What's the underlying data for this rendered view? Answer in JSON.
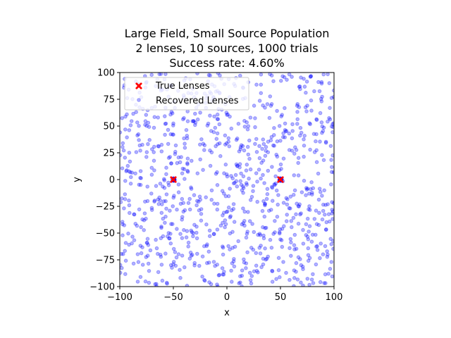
{
  "chart_data": {
    "type": "scatter",
    "title_lines": [
      "Large Field, Small Source Population",
      "2 lenses, 10 sources, 1000 trials",
      "Success rate: 4.60%"
    ],
    "xlabel": "x",
    "ylabel": "y",
    "xlim": [
      -100,
      100
    ],
    "ylim": [
      -100,
      100
    ],
    "xticks": [
      -100,
      -50,
      0,
      50,
      100
    ],
    "yticks": [
      -100,
      -75,
      -50,
      -25,
      0,
      25,
      50,
      75,
      100
    ],
    "grid": false,
    "legend_position": "top-left",
    "series": [
      {
        "name": "True Lenses",
        "marker": "x",
        "color": "#ff0000",
        "points": [
          [
            -50,
            0
          ],
          [
            50,
            0
          ]
        ]
      },
      {
        "name": "Recovered Lenses",
        "marker": "circle",
        "color": "#0000ff",
        "alpha": 0.3,
        "count": 1000,
        "distribution": "uniform over field",
        "clusters_at": [
          [
            -50,
            0
          ],
          [
            50,
            0
          ]
        ]
      }
    ]
  }
}
